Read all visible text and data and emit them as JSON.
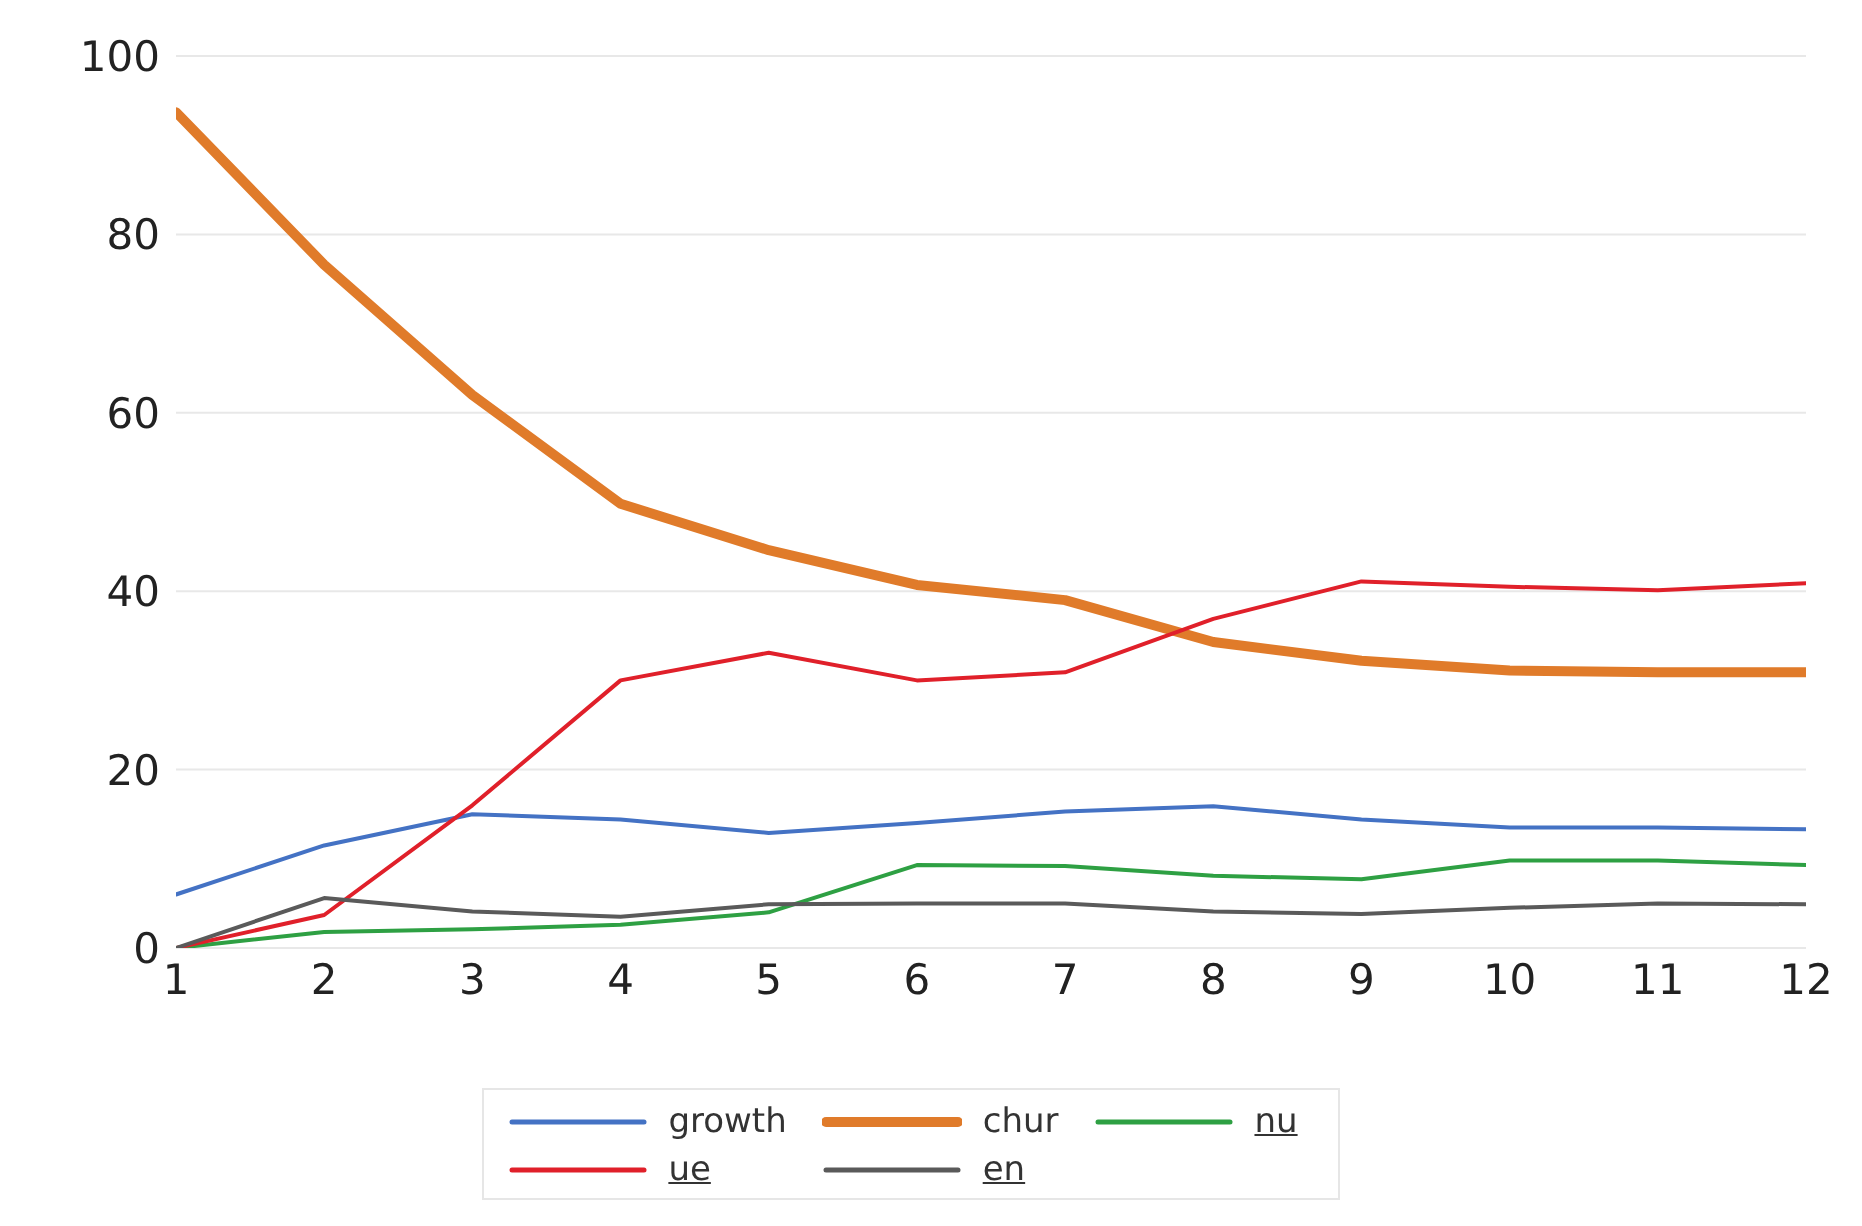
{
  "chart_data": {
    "type": "line",
    "x": [
      1,
      2,
      3,
      4,
      5,
      6,
      7,
      8,
      9,
      10,
      11,
      12
    ],
    "xlim": [
      1,
      12
    ],
    "xticks": [
      1,
      2,
      3,
      4,
      5,
      6,
      7,
      8,
      9,
      10,
      11,
      12
    ],
    "ylim": [
      0,
      100
    ],
    "yticks": [
      0,
      20,
      40,
      60,
      80,
      100
    ],
    "grid": "y",
    "legend": "bottom",
    "marker": "none",
    "line_style": "solid",
    "series": [
      {
        "name": "growth",
        "color": "#4472c4",
        "values": [
          6.0,
          11.5,
          15,
          14.4,
          12.9,
          14,
          15.3,
          15.9,
          14.4,
          13.5,
          13.5,
          13.3
        ]
      },
      {
        "name": "chur",
        "color": "#e07b2a",
        "values": [
          93.7,
          76.6,
          62,
          49.8,
          44.6,
          40.7,
          39,
          34.3,
          32.2,
          31.1,
          30.9,
          30.9
        ]
      },
      {
        "name": "nu",
        "color": "#2ea043",
        "values": [
          0,
          1.8,
          2.1,
          2.6,
          4,
          9.3,
          9.2,
          8.1,
          7.7,
          9.8,
          9.8,
          9.3
        ]
      },
      {
        "name": "ue",
        "color": "#e0202a",
        "values": [
          0,
          3.7,
          16,
          30,
          33.1,
          30,
          30.9,
          36.9,
          41.1,
          40.5,
          40.1,
          40.9
        ]
      },
      {
        "name": "en",
        "color": "#5a5a5a",
        "values": [
          0,
          5.6,
          4.1,
          3.5,
          4.9,
          5,
          5,
          4.1,
          3.8,
          4.5,
          5,
          4.9
        ]
      }
    ]
  }
}
